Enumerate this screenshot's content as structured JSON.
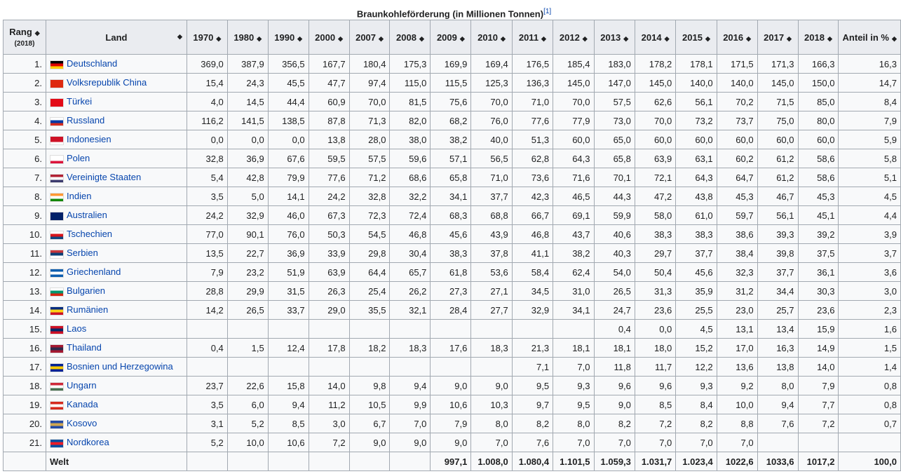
{
  "title": "Braunkohleförderung (in Millionen Tonnen)",
  "ref": "[1]",
  "headers": {
    "rank": "Rang",
    "rank_sub": "(2018)",
    "land": "Land",
    "years": [
      "1970",
      "1980",
      "1990",
      "2000",
      "2007",
      "2008",
      "2009",
      "2010",
      "2011",
      "2012",
      "2013",
      "2014",
      "2015",
      "2016",
      "2017",
      "2018"
    ],
    "share": "Anteil in %"
  },
  "rows": [
    {
      "rank": "1.",
      "land": "Deutschland",
      "flag": [
        "#000",
        "#d00",
        "#fc0"
      ],
      "v": [
        "369,0",
        "387,9",
        "356,5",
        "167,7",
        "180,4",
        "175,3",
        "169,9",
        "169,4",
        "176,5",
        "185,4",
        "183,0",
        "178,2",
        "178,1",
        "171,5",
        "171,3",
        "166,3",
        "16,3"
      ]
    },
    {
      "rank": "2.",
      "land": "Volksrepublik China",
      "flag": [
        "#de2910",
        "#de2910",
        "#de2910"
      ],
      "v": [
        "15,4",
        "24,3",
        "45,5",
        "47,7",
        "97,4",
        "115,0",
        "115,5",
        "125,3",
        "136,3",
        "145,0",
        "147,0",
        "145,0",
        "140,0",
        "140,0",
        "145,0",
        "150,0",
        "14,7"
      ]
    },
    {
      "rank": "3.",
      "land": "Türkei",
      "flag": [
        "#e30a17",
        "#e30a17",
        "#e30a17"
      ],
      "v": [
        "4,0",
        "14,5",
        "44,4",
        "60,9",
        "70,0",
        "81,5",
        "75,6",
        "70,0",
        "71,0",
        "70,0",
        "57,5",
        "62,6",
        "56,1",
        "70,2",
        "71,5",
        "85,0",
        "8,4"
      ]
    },
    {
      "rank": "4.",
      "land": "Russland",
      "flag": [
        "#fff",
        "#0039a6",
        "#d52b1e"
      ],
      "v": [
        "116,2",
        "141,5",
        "138,5",
        "87,8",
        "71,3",
        "82,0",
        "68,2",
        "76,0",
        "77,6",
        "77,9",
        "73,0",
        "70,0",
        "73,2",
        "73,7",
        "75,0",
        "80,0",
        "7,9"
      ]
    },
    {
      "rank": "5.",
      "land": "Indonesien",
      "flag": [
        "#ce1126",
        "#ce1126",
        "#fff"
      ],
      "v": [
        "0,0",
        "0,0",
        "0,0",
        "13,8",
        "28,0",
        "38,0",
        "38,2",
        "40,0",
        "51,3",
        "60,0",
        "65,0",
        "60,0",
        "60,0",
        "60,0",
        "60,0",
        "60,0",
        "5,9"
      ]
    },
    {
      "rank": "6.",
      "land": "Polen",
      "flag": [
        "#fff",
        "#fff",
        "#dc143c"
      ],
      "v": [
        "32,8",
        "36,9",
        "67,6",
        "59,5",
        "57,5",
        "59,6",
        "57,1",
        "56,5",
        "62,8",
        "64,3",
        "65,8",
        "63,9",
        "63,1",
        "60,2",
        "61,2",
        "58,6",
        "5,8"
      ]
    },
    {
      "rank": "7.",
      "land": "Vereinigte Staaten",
      "flag": [
        "#b22234",
        "#fff",
        "#3c3b6e"
      ],
      "v": [
        "5,4",
        "42,8",
        "79,9",
        "77,6",
        "71,2",
        "68,6",
        "65,8",
        "71,0",
        "73,6",
        "71,6",
        "70,1",
        "72,1",
        "64,3",
        "64,7",
        "61,2",
        "58,6",
        "5,1"
      ]
    },
    {
      "rank": "8.",
      "land": "Indien",
      "flag": [
        "#f93",
        "#fff",
        "#138808"
      ],
      "v": [
        "3,5",
        "5,0",
        "14,1",
        "24,2",
        "32,8",
        "32,2",
        "34,1",
        "37,7",
        "42,3",
        "46,5",
        "44,3",
        "47,2",
        "43,8",
        "45,3",
        "46,7",
        "45,3",
        "4,5"
      ]
    },
    {
      "rank": "9.",
      "land": "Australien",
      "flag": [
        "#012169",
        "#012169",
        "#012169"
      ],
      "v": [
        "24,2",
        "32,9",
        "46,0",
        "67,3",
        "72,3",
        "72,4",
        "68,3",
        "68,8",
        "66,7",
        "69,1",
        "59,9",
        "58,0",
        "61,0",
        "59,7",
        "56,1",
        "45,1",
        "4,4"
      ]
    },
    {
      "rank": "10.",
      "land": "Tschechien",
      "flag": [
        "#fff",
        "#d7141a",
        "#11457e"
      ],
      "v": [
        "77,0",
        "90,1",
        "76,0",
        "50,3",
        "54,5",
        "46,8",
        "45,6",
        "43,9",
        "46,8",
        "43,7",
        "40,6",
        "38,3",
        "38,3",
        "38,6",
        "39,3",
        "39,2",
        "3,9"
      ]
    },
    {
      "rank": "11.",
      "land": "Serbien",
      "flag": [
        "#c6363c",
        "#0c4076",
        "#fff"
      ],
      "v": [
        "13,5",
        "22,7",
        "36,9",
        "33,9",
        "29,8",
        "30,4",
        "38,3",
        "37,8",
        "41,1",
        "38,2",
        "40,3",
        "29,7",
        "37,7",
        "38,4",
        "39,8",
        "37,5",
        "3,7"
      ]
    },
    {
      "rank": "12.",
      "land": "Griechenland",
      "flag": [
        "#0d5eaf",
        "#fff",
        "#0d5eaf"
      ],
      "v": [
        "7,9",
        "23,2",
        "51,9",
        "63,9",
        "64,4",
        "65,7",
        "61,8",
        "53,6",
        "58,4",
        "62,4",
        "54,0",
        "50,4",
        "45,6",
        "32,3",
        "37,7",
        "36,1",
        "3,6"
      ]
    },
    {
      "rank": "13.",
      "land": "Bulgarien",
      "flag": [
        "#fff",
        "#00966e",
        "#d62612"
      ],
      "v": [
        "28,8",
        "29,9",
        "31,5",
        "26,3",
        "25,4",
        "26,2",
        "27,3",
        "27,1",
        "34,5",
        "31,0",
        "26,5",
        "31,3",
        "35,9",
        "31,2",
        "34,4",
        "30,3",
        "3,0"
      ]
    },
    {
      "rank": "14.",
      "land": "Rumänien",
      "flag": [
        "#002b7f",
        "#fcd116",
        "#ce1126"
      ],
      "v": [
        "14,2",
        "26,5",
        "33,7",
        "29,0",
        "35,5",
        "32,1",
        "28,4",
        "27,7",
        "32,9",
        "34,1",
        "24,7",
        "23,6",
        "25,5",
        "23,0",
        "25,7",
        "23,6",
        "2,3"
      ]
    },
    {
      "rank": "15.",
      "land": "Laos",
      "flag": [
        "#ce1126",
        "#002868",
        "#ce1126"
      ],
      "v": [
        "",
        "",
        "",
        "",
        "",
        "",
        "",
        "",
        "",
        "",
        "0,4",
        "0,0",
        "4,5",
        "13,1",
        "13,4",
        "15,9",
        "1,6"
      ]
    },
    {
      "rank": "16.",
      "land": "Thailand",
      "flag": [
        "#a51931",
        "#2d2a4a",
        "#a51931"
      ],
      "v": [
        "0,4",
        "1,5",
        "12,4",
        "17,8",
        "18,2",
        "18,3",
        "17,6",
        "18,3",
        "21,3",
        "18,1",
        "18,1",
        "18,0",
        "15,2",
        "17,0",
        "16,3",
        "14,9",
        "1,5"
      ]
    },
    {
      "rank": "17.",
      "land": "Bosnien und Herzegowina",
      "flag": [
        "#002395",
        "#fecb00",
        "#002395"
      ],
      "v": [
        "",
        "",
        "",
        "",
        "",
        "",
        "",
        "",
        "7,1",
        "7,0",
        "11,8",
        "11,7",
        "12,2",
        "13,6",
        "13,8",
        "14,0",
        "1,4"
      ]
    },
    {
      "rank": "18.",
      "land": "Ungarn",
      "flag": [
        "#ce2939",
        "#fff",
        "#477050"
      ],
      "v": [
        "23,7",
        "22,6",
        "15,8",
        "14,0",
        "9,8",
        "9,4",
        "9,0",
        "9,0",
        "9,5",
        "9,3",
        "9,6",
        "9,6",
        "9,3",
        "9,2",
        "8,0",
        "7,9",
        "0,8"
      ]
    },
    {
      "rank": "19.",
      "land": "Kanada",
      "flag": [
        "#d52b1e",
        "#fff",
        "#d52b1e"
      ],
      "v": [
        "3,5",
        "6,0",
        "9,4",
        "11,2",
        "10,5",
        "9,9",
        "10,6",
        "10,3",
        "9,7",
        "9,5",
        "9,0",
        "8,5",
        "8,4",
        "10,0",
        "9,4",
        "7,7",
        "0,8"
      ]
    },
    {
      "rank": "20.",
      "land": "Kosovo",
      "flag": [
        "#244aa5",
        "#d0a650",
        "#244aa5"
      ],
      "v": [
        "3,1",
        "5,2",
        "8,5",
        "3,0",
        "6,7",
        "7,0",
        "7,9",
        "8,0",
        "8,2",
        "8,0",
        "8,2",
        "7,2",
        "8,2",
        "8,8",
        "7,6",
        "7,2",
        "0,7"
      ]
    },
    {
      "rank": "21.",
      "land": "Nordkorea",
      "flag": [
        "#024fa2",
        "#ed1c27",
        "#024fa2"
      ],
      "v": [
        "5,2",
        "10,0",
        "10,6",
        "7,2",
        "9,0",
        "9,0",
        "9,0",
        "7,0",
        "7,6",
        "7,0",
        "7,0",
        "7,0",
        "7,0",
        "7,0",
        "",
        "",
        ""
      ]
    }
  ],
  "total": {
    "land": "Welt",
    "v": [
      "",
      "",
      "",
      "",
      "",
      "",
      "997,1",
      "1.008,0",
      "1.080,4",
      "1.101,5",
      "1.059,3",
      "1.031,7",
      "1.023,4",
      "1022,6",
      "1033,6",
      "1017,2",
      "100,0"
    ]
  }
}
